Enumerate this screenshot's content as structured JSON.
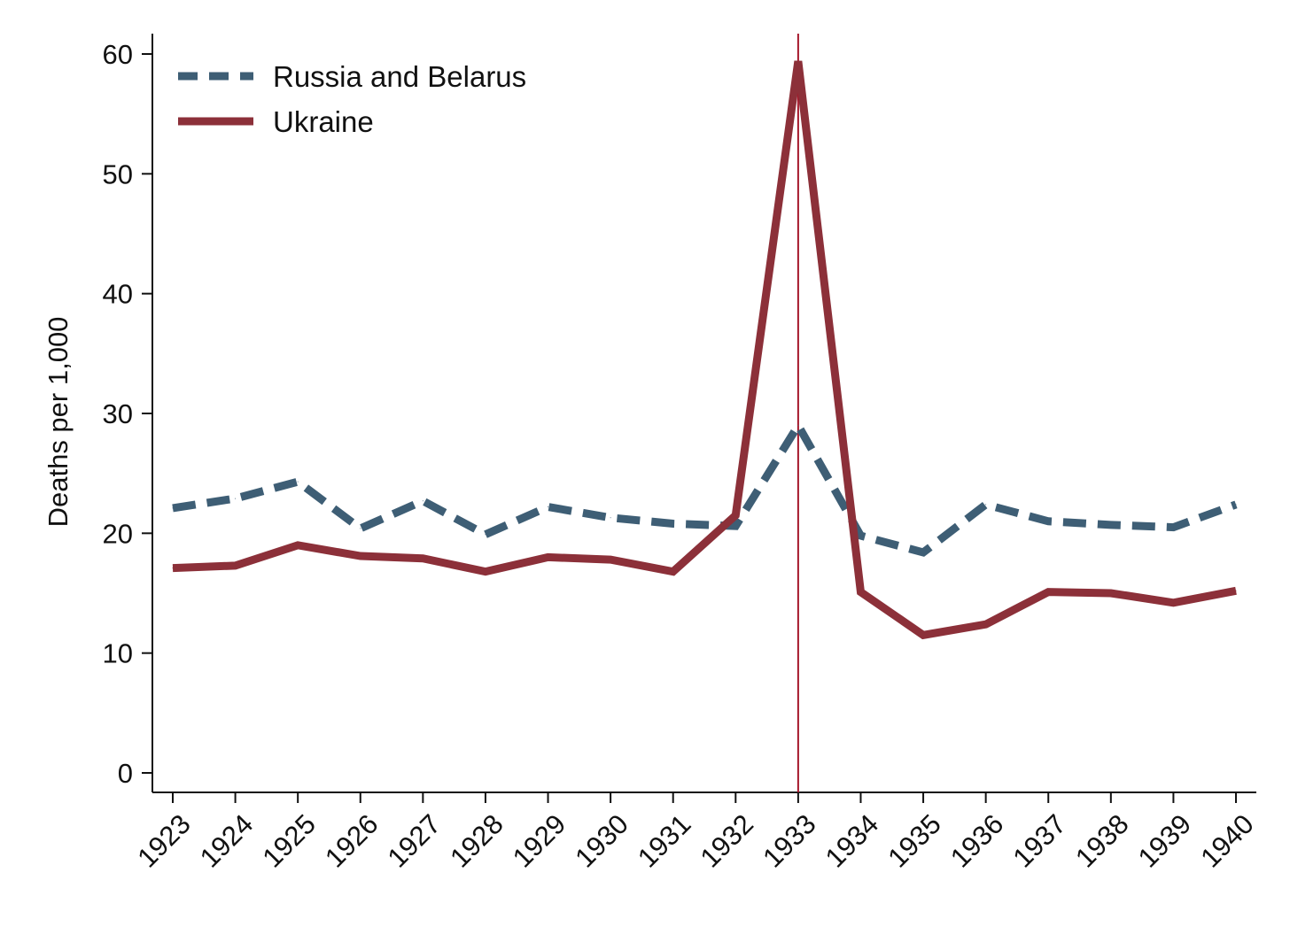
{
  "chart_data": {
    "type": "line",
    "title": "",
    "xlabel": "",
    "ylabel": "Deaths per 1,000",
    "x": [
      1923,
      1924,
      1925,
      1926,
      1927,
      1928,
      1929,
      1930,
      1931,
      1932,
      1933,
      1934,
      1935,
      1936,
      1937,
      1938,
      1939,
      1940
    ],
    "x_tick_labels": [
      "1923",
      "1924",
      "1925",
      "1926",
      "1927",
      "1928",
      "1929",
      "1930",
      "1931",
      "1932",
      "1933",
      "1934",
      "1935",
      "1936",
      "1937",
      "1938",
      "1939",
      "1940"
    ],
    "ylim": [
      0,
      60
    ],
    "y_ticks": [
      0,
      10,
      20,
      30,
      40,
      50,
      60
    ],
    "y_tick_labels": [
      "0",
      "10",
      "20",
      "30",
      "40",
      "50",
      "60"
    ],
    "grid": false,
    "legend_position": "top-left",
    "reference_line": {
      "x": 1933,
      "color": "#a5172a"
    },
    "series": [
      {
        "name": "Russia and Belarus",
        "style": "dashed",
        "color": "#3e5e75",
        "values": [
          22.1,
          22.9,
          24.3,
          20.4,
          22.7,
          19.9,
          22.2,
          21.3,
          20.8,
          20.6,
          29.0,
          19.8,
          18.4,
          22.4,
          21.0,
          20.7,
          20.5,
          22.4
        ]
      },
      {
        "name": "Ukraine",
        "style": "solid",
        "color": "#8c3039",
        "values": [
          17.1,
          17.3,
          19.0,
          18.1,
          17.9,
          16.8,
          18.0,
          17.8,
          16.8,
          21.5,
          59.4,
          15.1,
          11.5,
          12.4,
          15.1,
          15.0,
          14.2,
          15.2
        ]
      }
    ]
  }
}
